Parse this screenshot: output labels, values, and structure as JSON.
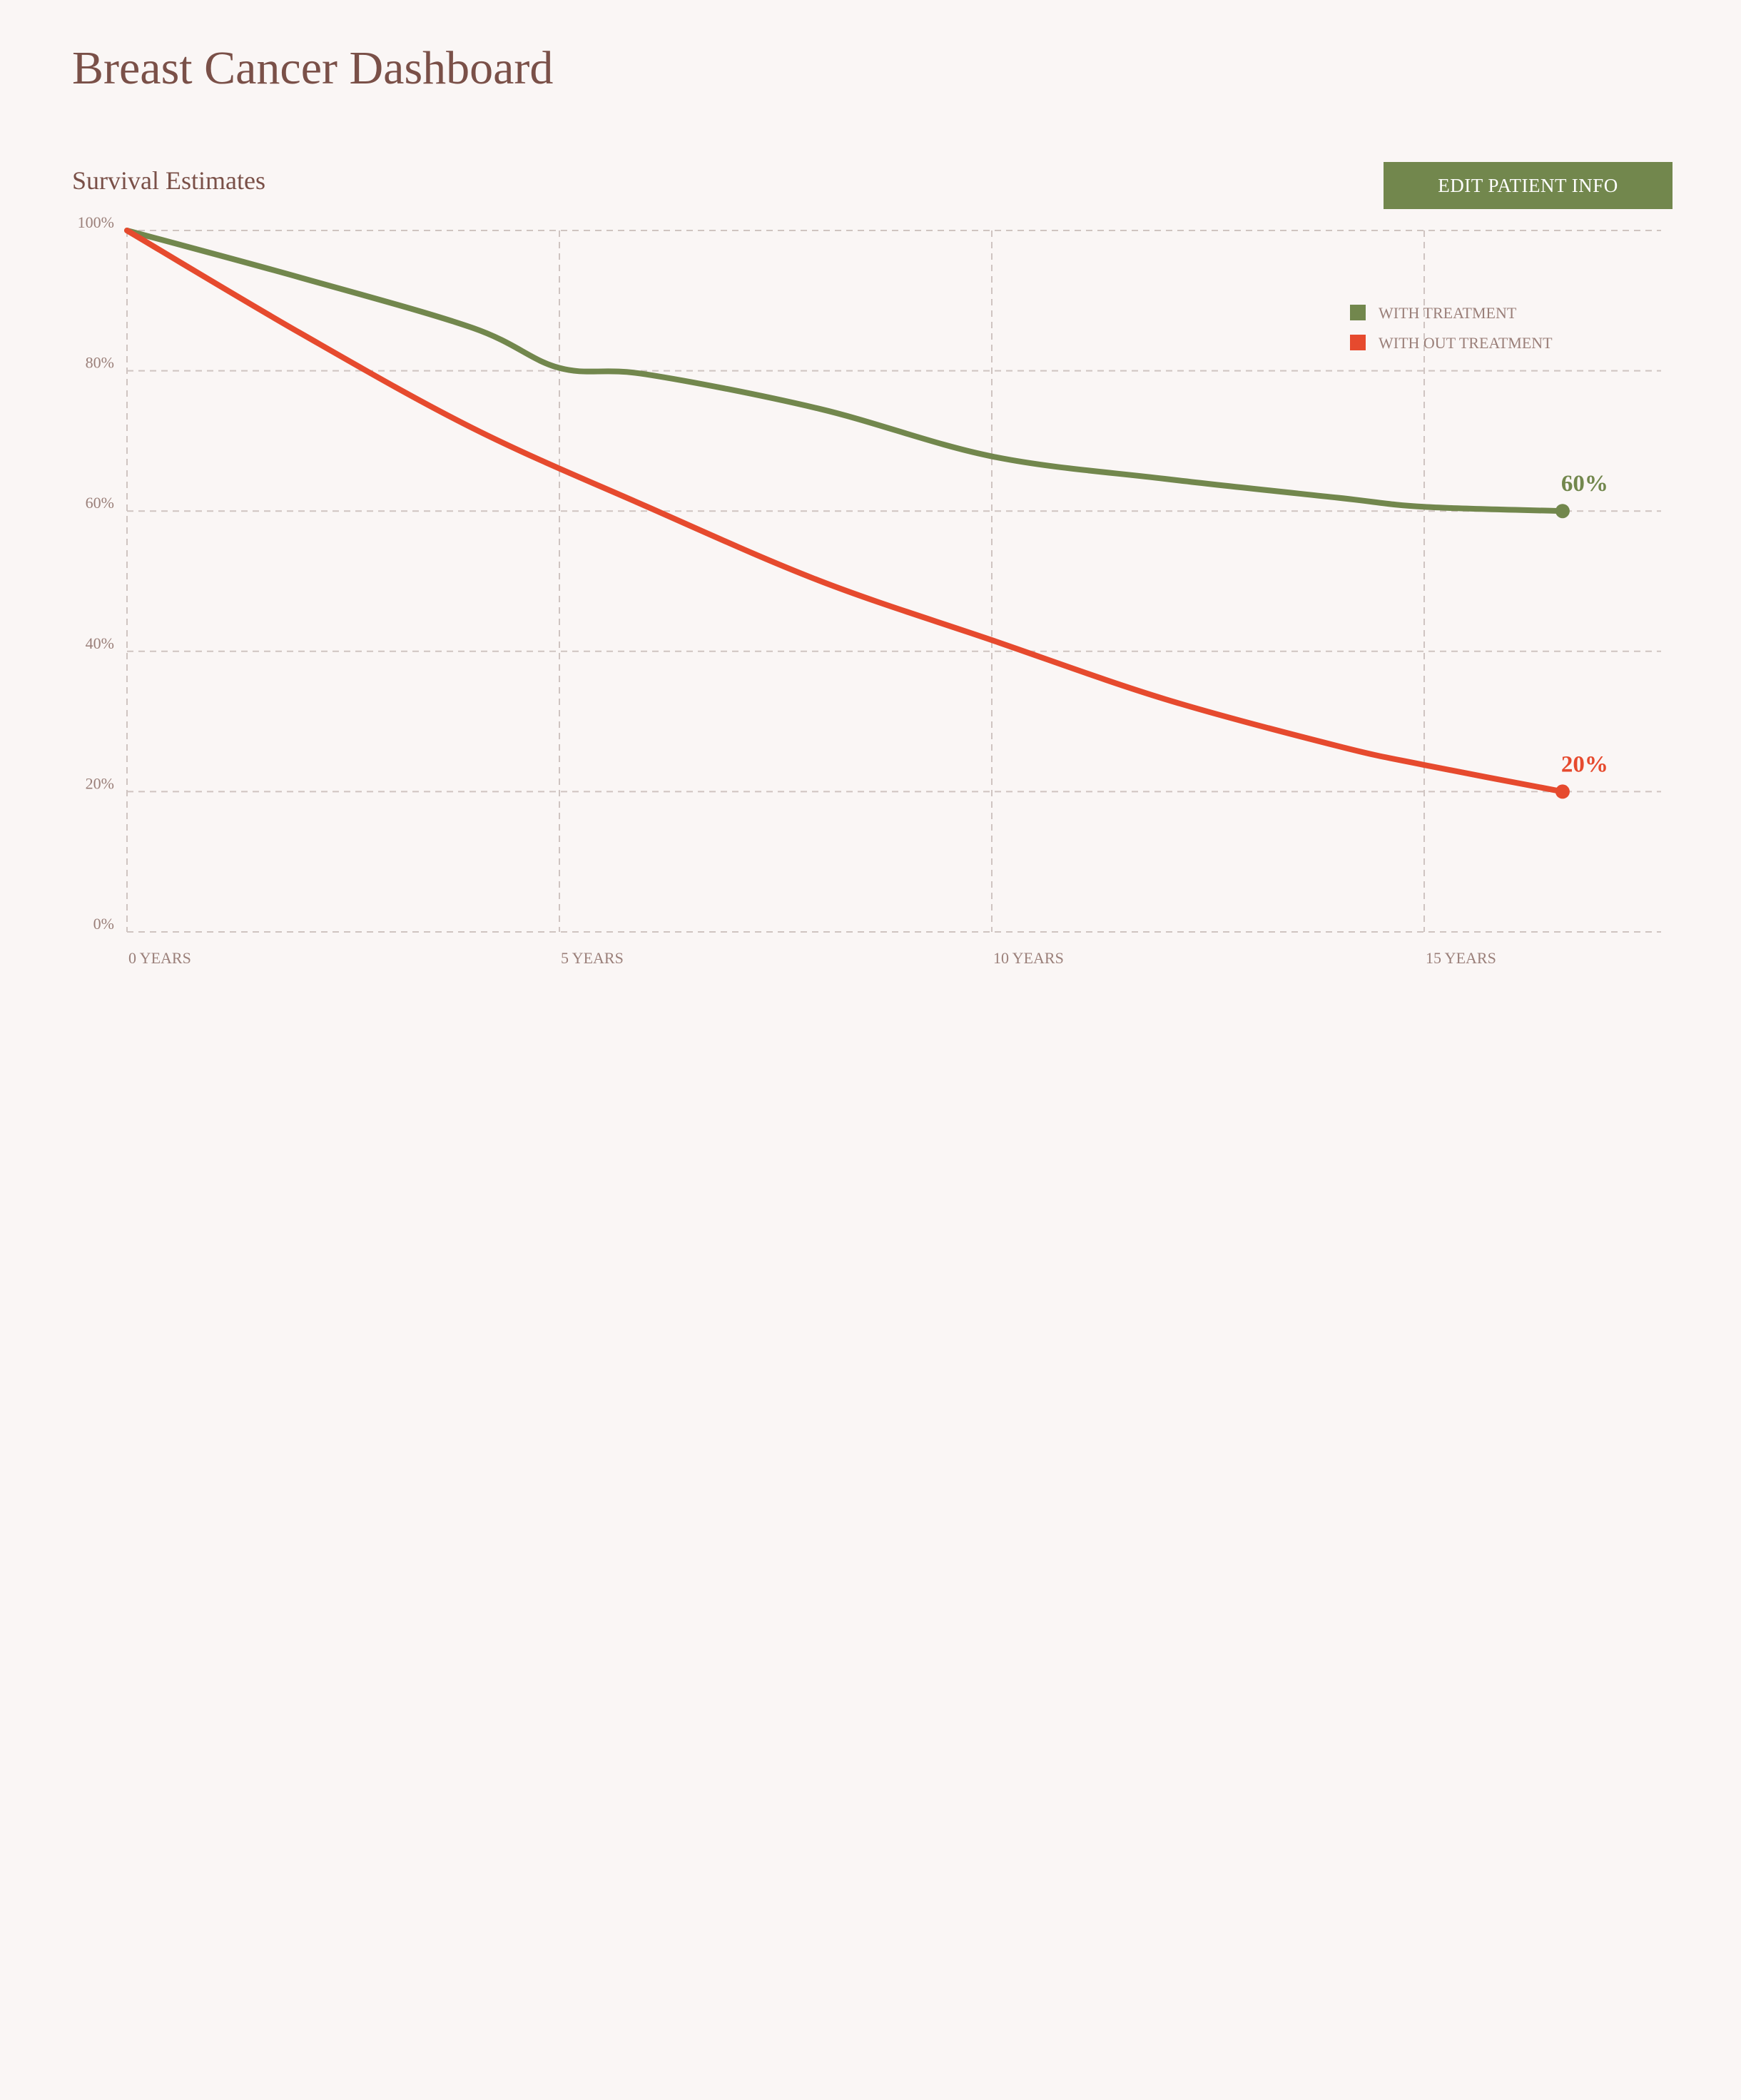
{
  "header": {
    "title": "Breast Cancer Dashboard"
  },
  "section": {
    "title": "Survival Estimates"
  },
  "actions": {
    "edit_patient_label": "EDIT PATIENT INFO"
  },
  "colors": {
    "treatment": "#72874d",
    "no_treatment": "#e64a2e",
    "text": "#7a5048",
    "grid": "#cfc4c1"
  },
  "chart_data": {
    "type": "line",
    "title": "Survival Estimates",
    "xlabel": "",
    "ylabel": "",
    "xlim": [
      0,
      18
    ],
    "ylim": [
      0,
      100
    ],
    "x_ticks": [
      0,
      5,
      10,
      15
    ],
    "x_tick_labels": [
      "0 YEARS",
      "5 YEARS",
      "10 YEARS",
      "15 YEARS"
    ],
    "y_ticks": [
      0,
      20,
      40,
      60,
      80,
      100
    ],
    "y_tick_labels": [
      "0%",
      "20%",
      "40%",
      "60%",
      "80%",
      "100%"
    ],
    "grid": true,
    "grid_style": "dashed",
    "legend_position": "top-right",
    "series": [
      {
        "name": "WITH TREATMENT",
        "color": "#72874d",
        "x": [
          0,
          2,
          4,
          5,
          6,
          8,
          10,
          12,
          14,
          15,
          16.6
        ],
        "y": [
          100,
          93.3,
          86.1,
          80.4,
          79.5,
          74.6,
          67.8,
          64.6,
          61.9,
          60.6,
          60
        ],
        "end_label": "60%"
      },
      {
        "name": "WITH OUT TREATMENT",
        "color": "#e64a2e",
        "x": [
          0,
          2,
          4,
          6,
          8,
          10,
          12,
          14,
          15,
          16.6
        ],
        "y": [
          100,
          85.4,
          71.8,
          60.7,
          50.1,
          41.6,
          33.2,
          26.5,
          23.8,
          20
        ],
        "end_label": "20%"
      }
    ]
  }
}
